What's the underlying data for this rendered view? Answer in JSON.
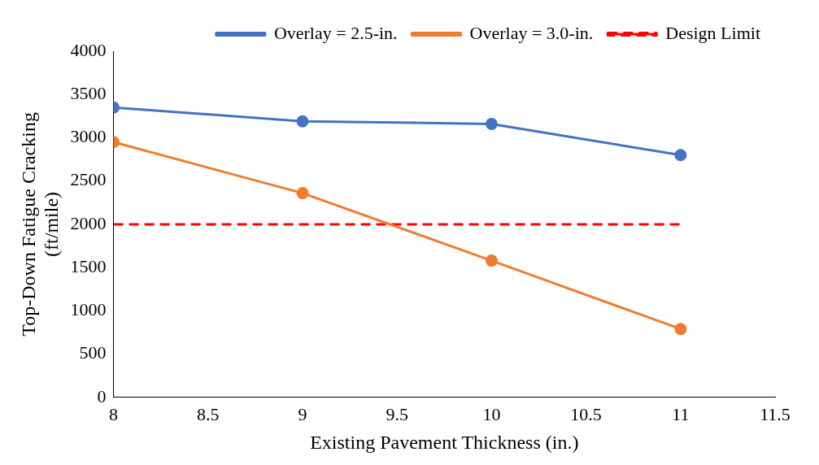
{
  "chart_data": {
    "type": "line",
    "x": [
      8,
      9,
      10,
      11
    ],
    "series": [
      {
        "name": "Overlay = 2.5-in.",
        "color": "#4472c4",
        "values": [
          3350,
          3190,
          3160,
          2800
        ],
        "marker": "circle"
      },
      {
        "name": "Overlay = 3.0-in.",
        "color": "#ed7d31",
        "values": [
          2950,
          2360,
          1580,
          790
        ],
        "marker": "circle"
      },
      {
        "name": "Design Limit",
        "color": "#ff0000",
        "values": [
          2000,
          2000,
          2000,
          2000
        ],
        "line_style": "dashed",
        "marker": "none"
      }
    ],
    "xlabel": "Existing Pavement Thickness (in.)",
    "ylabel": "Top-Down Fatigue Cracking\n(ft/mile)",
    "xlim": [
      8,
      11.5
    ],
    "xticks": [
      8,
      8.5,
      9,
      9.5,
      10,
      10.5,
      11,
      11.5
    ],
    "ylim": [
      0,
      4000
    ],
    "yticks": [
      0,
      500,
      1000,
      1500,
      2000,
      2500,
      3000,
      3500,
      4000
    ],
    "grid": false,
    "legend": "top"
  }
}
